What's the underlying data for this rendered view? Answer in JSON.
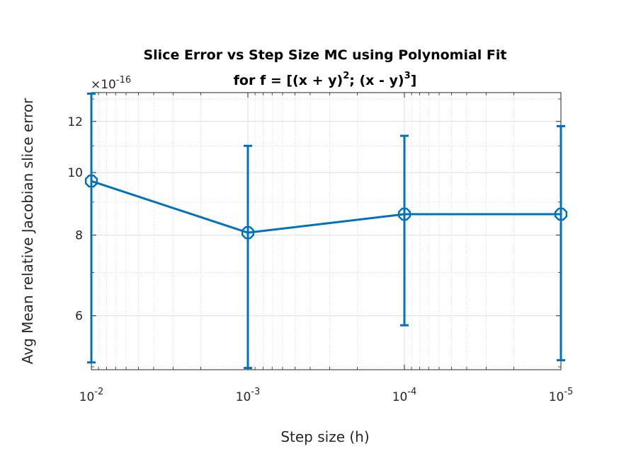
{
  "chart_data": {
    "type": "line",
    "title_line1": "Slice Error vs Step Size MC using Polynomial Fit",
    "title_line2_prefix": "for f = [(x + y)",
    "title_line2_sup1": "2",
    "title_line2_mid": "; (x - y)",
    "title_line2_sup2": "3",
    "title_line2_suffix": "]",
    "xlabel": "Step size (h)",
    "ylabel": "Avg Mean relative Jacobian slice error",
    "y_exponent_prefix": "×10",
    "y_exponent_power": "-16",
    "x_scale": "log",
    "x_reversed": true,
    "y_scale": "log",
    "xlim": [
      0.01,
      1e-05
    ],
    "ylim": [
      4.95,
      13.3
    ],
    "x_ticks": [
      {
        "value": 0.01,
        "base": "10",
        "exp": "-2"
      },
      {
        "value": 0.001,
        "base": "10",
        "exp": "-3"
      },
      {
        "value": 0.0001,
        "base": "10",
        "exp": "-4"
      },
      {
        "value": 1e-05,
        "base": "10",
        "exp": "-5"
      }
    ],
    "y_ticks": [
      {
        "value": 6,
        "label": "6"
      },
      {
        "value": 8,
        "label": "8"
      },
      {
        "value": 10,
        "label": "10"
      },
      {
        "value": 12,
        "label": "12"
      }
    ],
    "grid": true,
    "minor_grid": true,
    "series": [
      {
        "color": "#0072BD",
        "marker": "octagon",
        "x": [
          0.01,
          0.001,
          0.0001,
          1e-05
        ],
        "y": [
          9.7,
          8.07,
          8.62,
          8.62
        ],
        "err_low": [
          5.08,
          4.98,
          5.8,
          5.12
        ],
        "err_high": [
          13.25,
          11.0,
          11.4,
          11.8
        ]
      }
    ]
  }
}
